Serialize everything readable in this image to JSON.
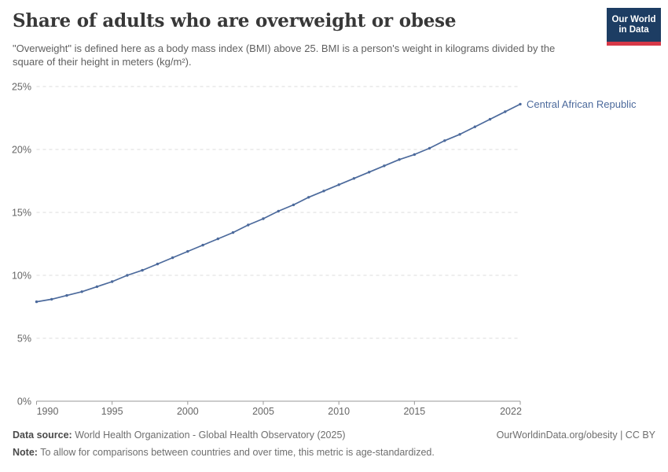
{
  "header": {
    "title": "Share of adults who are overweight or obese",
    "subtitle": "\"Overweight\" is defined here as a body mass index (BMI) above 25. BMI is a person's weight in kilograms divided by the square of their height in meters (kg/m²).",
    "logo": {
      "line1": "Our World",
      "line2": "in Data"
    }
  },
  "chart_data": {
    "type": "line",
    "title": "Share of adults who are overweight or obese",
    "xlabel": "",
    "ylabel": "",
    "unit": "%",
    "ylim": [
      0,
      25
    ],
    "grid": "horizontal-dashed",
    "legend_position": "end-of-line-label",
    "series": [
      {
        "name": "Central African Republic",
        "color": "#4c6a9c",
        "x": [
          1990,
          1991,
          1992,
          1993,
          1994,
          1995,
          1996,
          1997,
          1998,
          1999,
          2000,
          2001,
          2002,
          2003,
          2004,
          2005,
          2006,
          2007,
          2008,
          2009,
          2010,
          2011,
          2012,
          2013,
          2014,
          2015,
          2016,
          2017,
          2018,
          2019,
          2020,
          2021,
          2022
        ],
        "values": [
          7.9,
          8.1,
          8.4,
          8.7,
          9.1,
          9.5,
          10.0,
          10.4,
          10.9,
          11.4,
          11.9,
          12.4,
          12.9,
          13.4,
          14.0,
          14.5,
          15.1,
          15.6,
          16.2,
          16.7,
          17.2,
          17.7,
          18.2,
          18.7,
          19.2,
          19.6,
          20.1,
          20.7,
          21.2,
          21.8,
          22.4,
          23.0,
          23.6
        ]
      }
    ],
    "yticks": [
      {
        "v": 0,
        "label": "0%"
      },
      {
        "v": 5,
        "label": "5%"
      },
      {
        "v": 10,
        "label": "10%"
      },
      {
        "v": 15,
        "label": "15%"
      },
      {
        "v": 20,
        "label": "20%"
      },
      {
        "v": 25,
        "label": "25%"
      }
    ],
    "xticks": [
      {
        "v": 1990,
        "label": "1990"
      },
      {
        "v": 1995,
        "label": "1995"
      },
      {
        "v": 2000,
        "label": "2000"
      },
      {
        "v": 2005,
        "label": "2005"
      },
      {
        "v": 2010,
        "label": "2010"
      },
      {
        "v": 2015,
        "label": "2015"
      },
      {
        "v": 2022,
        "label": "2022"
      }
    ],
    "colors": {
      "gridline": "#dddddd",
      "axis": "#999999",
      "tick_label": "#666666",
      "line": "#4c6a9c",
      "entity_label": "#4c6a9c"
    }
  },
  "footer": {
    "data_source_label": "Data source:",
    "data_source_text": " World Health Organization - Global Health Observatory (2025)",
    "link_text": "OurWorldinData.org/obesity | CC BY",
    "note_label": "Note:",
    "note_text": " To allow for comparisons between countries and over time, this metric is age-standardized."
  }
}
